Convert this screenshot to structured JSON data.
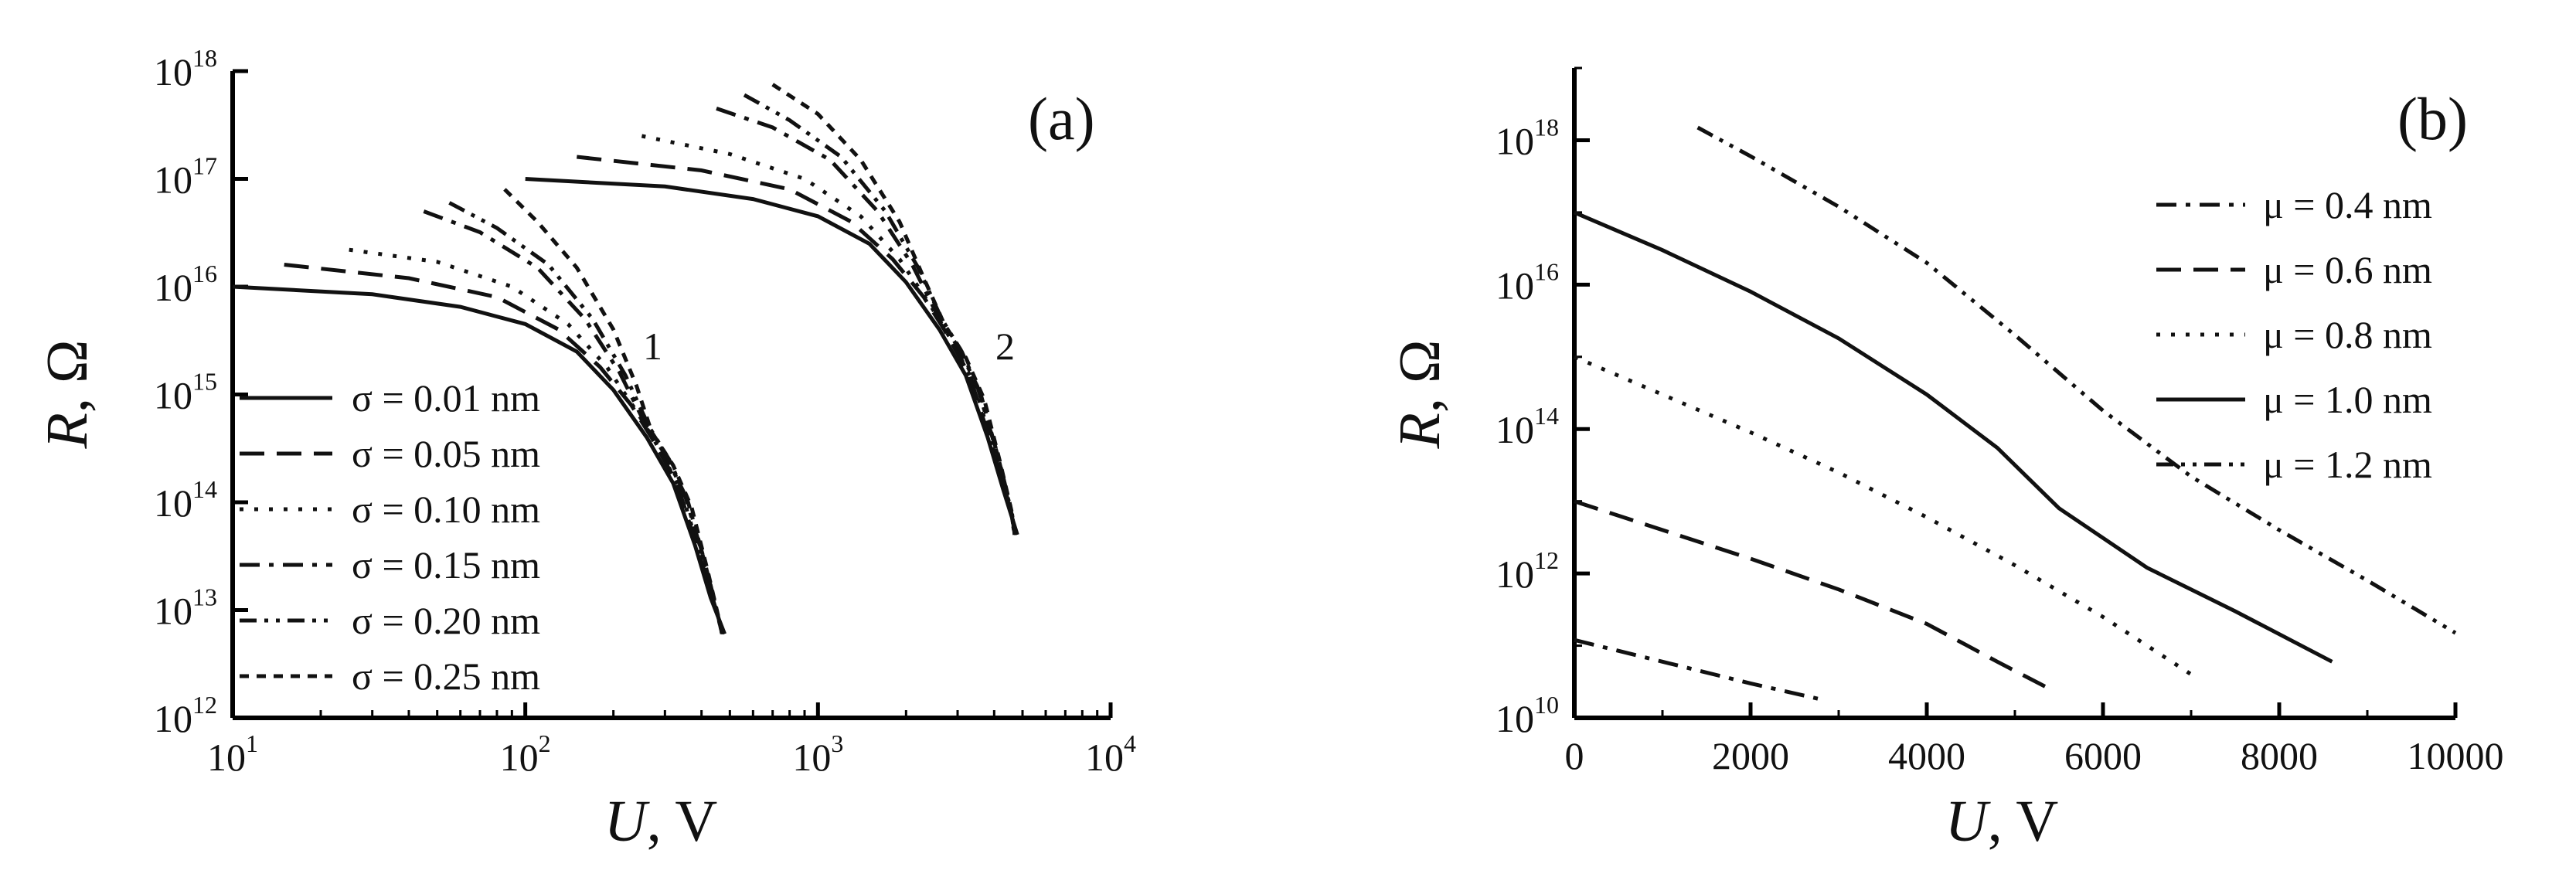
{
  "chart_data": [
    {
      "panel": "(a)",
      "type": "line",
      "xlabel": {
        "var": "U",
        "unit": ", V"
      },
      "ylabel": {
        "var": "R",
        "unit": ", Ω"
      },
      "x_scale": "log",
      "y_scale": "log",
      "xlim": [
        10,
        10000
      ],
      "ylim": [
        1000000000000.0,
        1e+18
      ],
      "x_ticks": [
        {
          "base": "10",
          "exp": "1",
          "v": 10
        },
        {
          "base": "10",
          "exp": "2",
          "v": 100
        },
        {
          "base": "10",
          "exp": "3",
          "v": 1000
        },
        {
          "base": "10",
          "exp": "4",
          "v": 10000
        }
      ],
      "y_ticks": [
        {
          "base": "10",
          "exp": "12",
          "v": 1000000000000.0
        },
        {
          "base": "10",
          "exp": "13",
          "v": 10000000000000.0
        },
        {
          "base": "10",
          "exp": "14",
          "v": 100000000000000.0
        },
        {
          "base": "10",
          "exp": "15",
          "v": 1000000000000000.0
        },
        {
          "base": "10",
          "exp": "16",
          "v": 1e+16
        },
        {
          "base": "10",
          "exp": "17",
          "v": 1e+17
        },
        {
          "base": "10",
          "exp": "18",
          "v": 1e+18
        }
      ],
      "legend_position": "bottom-left",
      "curve_labels": [
        {
          "text": "1",
          "x": 280,
          "y": 2500000000000000.0
        },
        {
          "text": "2",
          "x": 2800,
          "y": 2500000000000000.0
        }
      ],
      "series": [
        {
          "name": "σ = 0.01 nm",
          "dash": "solid",
          "group": 1,
          "x": [
            10,
            30,
            60,
            100,
            150,
            200,
            260,
            320,
            380,
            430,
            480
          ],
          "y": [
            1e+16,
            8500000000000000.0,
            6500000000000000.0,
            4500000000000000.0,
            2500000000000000.0,
            1100000000000000.0,
            400000000000000.0,
            150000000000000.0,
            40000000000000.0,
            13000000000000.0,
            6000000000000.0
          ]
        },
        {
          "name": "σ = 0.05 nm",
          "dash": "long-dash",
          "group": 1,
          "x": [
            15,
            40,
            80,
            130,
            180,
            230,
            270,
            330,
            390,
            440,
            475
          ],
          "y": [
            1.6e+16,
            1.2e+16,
            8000000000000000.0,
            4000000000000000.0,
            1800000000000000.0,
            800000000000000.0,
            400000000000000.0,
            150000000000000.0,
            35000000000000.0,
            12000000000000.0,
            6000000000000.0
          ]
        },
        {
          "name": "σ = 0.10 nm",
          "dash": "dot",
          "group": 1,
          "x": [
            25,
            50,
            90,
            140,
            190,
            240,
            280,
            340,
            400,
            450,
            470
          ],
          "y": [
            2.2e+16,
            1.7e+16,
            1e+16,
            4500000000000000.0,
            1800000000000000.0,
            700000000000000.0,
            350000000000000.0,
            130000000000000.0,
            30000000000000.0,
            10000000000000.0,
            6000000000000.0
          ]
        },
        {
          "name": "σ = 0.15 nm",
          "dash": "dash-dot",
          "group": 1,
          "x": [
            45,
            70,
            110,
            160,
            210,
            260,
            300,
            350,
            410,
            455,
            470
          ],
          "y": [
            5e+16,
            3.2e+16,
            1.5e+16,
            5000000000000000.0,
            1600000000000000.0,
            500000000000000.0,
            280000000000000.0,
            120000000000000.0,
            28000000000000.0,
            9000000000000.0,
            6000000000000.0
          ]
        },
        {
          "name": "σ = 0.20 nm",
          "dash": "dash-dot-dot",
          "group": 1,
          "x": [
            55,
            80,
            120,
            170,
            220,
            265,
            310,
            360,
            415,
            460,
            470
          ],
          "y": [
            6e+16,
            3.5e+16,
            1.6e+16,
            5000000000000000.0,
            1500000000000000.0,
            500000000000000.0,
            250000000000000.0,
            100000000000000.0,
            25000000000000.0,
            8000000000000.0,
            6000000000000.0
          ]
        },
        {
          "name": "σ = 0.25 nm",
          "dash": "short-dash",
          "group": 1,
          "x": [
            85,
            110,
            150,
            200,
            240,
            270,
            320,
            370,
            420,
            460,
            470
          ],
          "y": [
            8e+16,
            4e+16,
            1.5e+16,
            4000000000000000.0,
            1200000000000000.0,
            450000000000000.0,
            220000000000000.0,
            90000000000000.0,
            23000000000000.0,
            8000000000000.0,
            6000000000000.0
          ]
        },
        {
          "name": "",
          "dash": "solid",
          "group": 2,
          "x": [
            100,
            300,
            600,
            1000,
            1500,
            2000,
            2600,
            3200,
            3800,
            4300,
            4800
          ],
          "y": [
            1e+17,
            8.5e+16,
            6.5e+16,
            4.5e+16,
            2.5e+16,
            1.1e+16,
            4000000000000000.0,
            1500000000000000.0,
            400000000000000.0,
            130000000000000.0,
            50000000000000.0
          ]
        },
        {
          "name": "",
          "dash": "long-dash",
          "group": 2,
          "x": [
            150,
            400,
            800,
            1300,
            1800,
            2300,
            2700,
            3300,
            3900,
            4400,
            4750
          ],
          "y": [
            1.6e+17,
            1.2e+17,
            8e+16,
            4e+16,
            1.8e+16,
            8000000000000000.0,
            4000000000000000.0,
            1500000000000000.0,
            350000000000000.0,
            120000000000000.0,
            50000000000000.0
          ]
        },
        {
          "name": "",
          "dash": "dot",
          "group": 2,
          "x": [
            250,
            500,
            900,
            1400,
            1900,
            2400,
            2800,
            3400,
            4000,
            4500,
            4700
          ],
          "y": [
            2.5e+17,
            1.7e+17,
            1e+17,
            4.5e+16,
            1.8e+16,
            7000000000000000.0,
            3500000000000000.0,
            1300000000000000.0,
            300000000000000.0,
            100000000000000.0,
            50000000000000.0
          ]
        },
        {
          "name": "",
          "dash": "dash-dot",
          "group": 2,
          "x": [
            450,
            700,
            1100,
            1600,
            2100,
            2600,
            3000,
            3500,
            4100,
            4550,
            4700
          ],
          "y": [
            4.5e+17,
            3e+17,
            1.5e+17,
            5e+16,
            1.6e+16,
            5000000000000000.0,
            2800000000000000.0,
            1200000000000000.0,
            280000000000000.0,
            90000000000000.0,
            50000000000000.0
          ]
        },
        {
          "name": "",
          "dash": "dash-dot-dot",
          "group": 2,
          "x": [
            560,
            800,
            1200,
            1700,
            2200,
            2650,
            3100,
            3600,
            4150,
            4600,
            4700
          ],
          "y": [
            6e+17,
            3.5e+17,
            1.6e+17,
            5e+16,
            1.5e+16,
            5000000000000000.0,
            2500000000000000.0,
            1000000000000000.0,
            250000000000000.0,
            80000000000000.0,
            50000000000000.0
          ]
        },
        {
          "name": "",
          "dash": "short-dash",
          "group": 2,
          "x": [
            700,
            1000,
            1400,
            1900,
            2300,
            2700,
            3200,
            3700,
            4200,
            4600,
            4700
          ],
          "y": [
            7.5e+17,
            4e+17,
            1.5e+17,
            4e+16,
            1.2e+16,
            4500000000000000.0,
            2200000000000000.0,
            900000000000000.0,
            230000000000000.0,
            80000000000000.0,
            50000000000000.0
          ]
        }
      ]
    },
    {
      "panel": "(b)",
      "type": "line",
      "xlabel": {
        "var": "U",
        "unit": ", V"
      },
      "ylabel": {
        "var": "R",
        "unit": ", Ω"
      },
      "x_scale": "linear",
      "y_scale": "log",
      "xlim": [
        0,
        10000
      ],
      "ylim": [
        10000000000.0,
        1e+19
      ],
      "x_ticks": [
        {
          "label": "0",
          "v": 0
        },
        {
          "label": "2000",
          "v": 2000
        },
        {
          "label": "4000",
          "v": 4000
        },
        {
          "label": "6000",
          "v": 6000
        },
        {
          "label": "8000",
          "v": 8000
        },
        {
          "label": "10000",
          "v": 10000
        }
      ],
      "y_ticks": [
        {
          "base": "10",
          "exp": "10",
          "v": 10000000000.0
        },
        {
          "base": "10",
          "exp": "12",
          "v": 1000000000000.0
        },
        {
          "base": "10",
          "exp": "14",
          "v": 100000000000000.0
        },
        {
          "base": "10",
          "exp": "16",
          "v": 1e+16
        },
        {
          "base": "10",
          "exp": "18",
          "v": 1e+18
        }
      ],
      "legend_position": "top-right",
      "series": [
        {
          "name": "μ = 0.4 nm",
          "dash": "dash-dot",
          "x": [
            0,
            1000,
            2000,
            2800
          ],
          "y": [
            120000000000.0,
            60000000000.0,
            30000000000.0,
            18000000000.0
          ]
        },
        {
          "name": "μ = 0.6 nm",
          "dash": "long-dash",
          "x": [
            0,
            1000,
            2000,
            3000,
            4000,
            4800,
            5400
          ],
          "y": [
            10000000000000.0,
            4000000000000.0,
            1600000000000.0,
            600000000000.0,
            200000000000.0,
            60000000000.0,
            25000000000.0
          ]
        },
        {
          "name": "μ = 0.8 nm",
          "dash": "dot",
          "x": [
            0,
            1000,
            2000,
            3000,
            4000,
            5000,
            6000,
            7000
          ],
          "y": [
            1000000000000000.0,
            300000000000000.0,
            90000000000000.0,
            25000000000000.0,
            6000000000000.0,
            1300000000000.0,
            250000000000.0,
            40000000000.0
          ]
        },
        {
          "name": "μ = 1.0 nm",
          "dash": "solid",
          "x": [
            0,
            1000,
            2000,
            3000,
            4000,
            4800,
            5500,
            6500,
            7500,
            8600
          ],
          "y": [
            1e+17,
            3e+16,
            8000000000000000.0,
            1800000000000000.0,
            300000000000000.0,
            55000000000000.0,
            8000000000000.0,
            1200000000000.0,
            300000000000.0,
            60000000000.0
          ]
        },
        {
          "name": "μ = 1.2 nm",
          "dash": "dash-dot-dot",
          "x": [
            1400,
            2000,
            3000,
            4000,
            5000,
            6000,
            7000,
            8000,
            9000,
            10000
          ],
          "y": [
            1.5e+18,
            6e+17,
            1.2e+17,
            2e+16,
            2000000000000000.0,
            180000000000000.0,
            22000000000000.0,
            4000000000000.0,
            800000000000.0,
            150000000000.0
          ]
        }
      ]
    }
  ]
}
